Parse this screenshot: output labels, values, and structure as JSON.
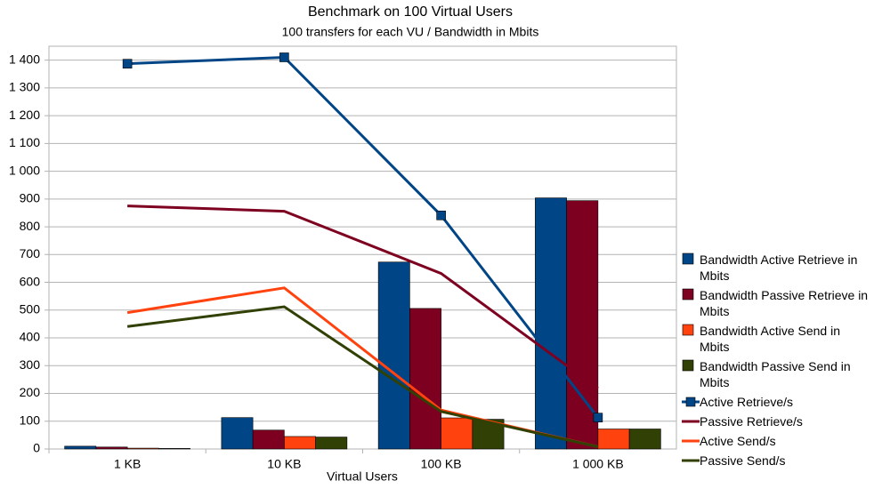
{
  "chart_data": {
    "type": "bar",
    "title": "Benchmark on 100 Virtual Users",
    "subtitle": "100 transfers for each VU / Bandwidth in Mbits",
    "x_label": "Virtual Users",
    "categories": [
      "1 KB",
      "10 KB",
      "100 KB",
      "1 000 KB"
    ],
    "series": [
      {
        "name": "Bandwidth Active Retrieve in Mbits",
        "type": "bar",
        "color": "#004586",
        "values": [
          10,
          113,
          673,
          904
        ]
      },
      {
        "name": "Bandwidth Passive Retrieve in Mbits",
        "type": "bar",
        "color": "#7e0021",
        "values": [
          7,
          68,
          506,
          894
        ]
      },
      {
        "name": "Bandwidth Active Send in Mbits",
        "type": "bar",
        "color": "#ff420e",
        "values": [
          3,
          45,
          112,
          72
        ]
      },
      {
        "name": "Bandwidth Passive Send in Mbits",
        "type": "bar",
        "color": "#314004",
        "values": [
          2,
          43,
          107,
          72
        ]
      },
      {
        "name": "Active Retrieve/s",
        "type": "line",
        "marker": "square",
        "color": "#004586",
        "values": [
          1387,
          1410,
          841,
          113
        ]
      },
      {
        "name": "Passive Retrieve/s",
        "type": "line",
        "color": "#7e0021",
        "values": [
          875,
          856,
          632,
          218
        ]
      },
      {
        "name": "Active Send/s",
        "type": "line",
        "color": "#ff420e",
        "values": [
          491,
          580,
          140,
          8
        ]
      },
      {
        "name": "Passive Send/s",
        "type": "line",
        "color": "#314004",
        "values": [
          441,
          512,
          135,
          8
        ]
      }
    ],
    "ylim": [
      0,
      1450
    ],
    "yticks": [
      0,
      100,
      200,
      300,
      400,
      500,
      600,
      700,
      800,
      900,
      {
        "value": 1000,
        "label": "1 000"
      },
      {
        "value": 1100,
        "label": "1 100"
      },
      {
        "value": 1200,
        "label": "1 200"
      },
      {
        "value": 1300,
        "label": "1 300"
      },
      {
        "value": 1400,
        "label": "1 400"
      }
    ],
    "grid": true,
    "legend": "right"
  }
}
